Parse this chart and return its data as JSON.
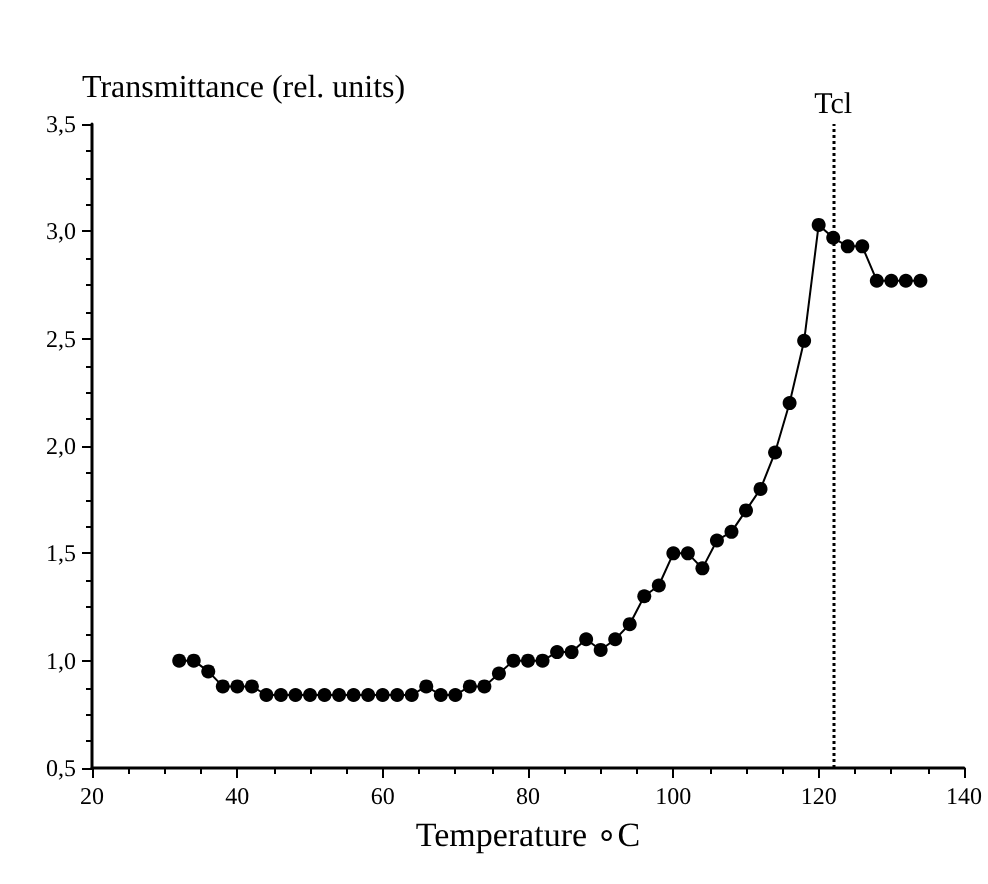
{
  "chart_data": {
    "type": "line",
    "ylabel": "Transmittance (rel. units)",
    "xlabel": "Temperature ∘C",
    "x": [
      32,
      34,
      36,
      38,
      40,
      42,
      44,
      46,
      48,
      50,
      52,
      54,
      56,
      58,
      60,
      62,
      64,
      66,
      68,
      70,
      72,
      74,
      76,
      78,
      80,
      82,
      84,
      86,
      88,
      90,
      92,
      94,
      96,
      98,
      100,
      102,
      104,
      106,
      108,
      110,
      112,
      114,
      116,
      118,
      120,
      122,
      124,
      126,
      128,
      130,
      132,
      134
    ],
    "series": [
      {
        "color": "#000000",
        "values": [
          1.0,
          1.0,
          0.95,
          0.88,
          0.88,
          0.88,
          0.84,
          0.84,
          0.84,
          0.84,
          0.84,
          0.84,
          0.84,
          0.84,
          0.84,
          0.84,
          0.84,
          0.88,
          0.84,
          0.84,
          0.88,
          0.88,
          0.94,
          1.0,
          1.0,
          1.0,
          1.04,
          1.04,
          1.1,
          1.05,
          1.1,
          1.17,
          1.3,
          1.35,
          1.5,
          1.5,
          1.43,
          1.56,
          1.6,
          1.7,
          1.8,
          1.97,
          2.2,
          2.49,
          3.03,
          2.97,
          2.93,
          2.93,
          2.77,
          2.77,
          2.77,
          2.77
        ]
      }
    ],
    "xlim": [
      20,
      140
    ],
    "xticks": [
      20,
      40,
      60,
      80,
      100,
      120,
      140
    ],
    "ylim": [
      0.5,
      3.5
    ],
    "yticks": [
      {
        "value": 0.5,
        "label": "0,5"
      },
      {
        "value": 1.0,
        "label": "1,0"
      },
      {
        "value": 1.5,
        "label": "1,5"
      },
      {
        "value": 2.0,
        "label": "2,0"
      },
      {
        "value": 2.5,
        "label": "2,5"
      },
      {
        "value": 3.0,
        "label": "3,0"
      },
      {
        "value": 3.5,
        "label": "3,5"
      }
    ],
    "ref_lines": [
      {
        "axis": "x",
        "value": 122,
        "label": "Tcl",
        "color": "#000000",
        "line_style": "dotted"
      }
    ],
    "grid": false,
    "marker": "circle",
    "line_style": "solid"
  }
}
